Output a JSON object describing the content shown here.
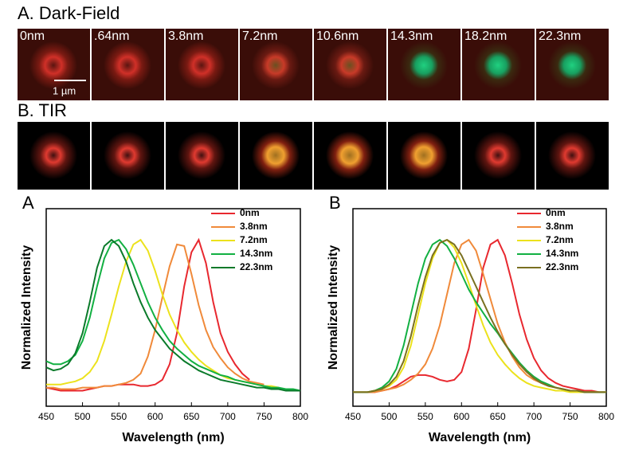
{
  "figure": {
    "dark_field": {
      "title": "A. Dark-Field",
      "labels": [
        "0nm",
        ".64nm",
        "3.8nm",
        "7.2nm",
        "10.6nm",
        "14.3nm",
        "18.2nm",
        "22.3nm"
      ],
      "scale_bar": "1 µm"
    },
    "tir": {
      "title": "B. TIR"
    }
  },
  "chart_data": [
    {
      "type": "line",
      "title": "A",
      "xlabel": "Wavelength (nm)",
      "ylabel": "Normalized Intensity",
      "xlim": [
        450,
        800
      ],
      "xticks": [
        450,
        500,
        550,
        600,
        650,
        700,
        750,
        800
      ],
      "ylim": [
        -0.07,
        1.2
      ],
      "legend": "upper right",
      "x": [
        450,
        460,
        470,
        480,
        490,
        500,
        510,
        520,
        530,
        540,
        550,
        560,
        570,
        580,
        590,
        600,
        610,
        620,
        630,
        640,
        650,
        660,
        670,
        680,
        690,
        700,
        710,
        720,
        730,
        740,
        750,
        760,
        770,
        780,
        790,
        800
      ],
      "series": [
        {
          "name": "0nm",
          "color": "#e8282f",
          "values": [
            0.05,
            0.04,
            0.03,
            0.03,
            0.03,
            0.03,
            0.04,
            0.05,
            0.06,
            0.06,
            0.07,
            0.07,
            0.07,
            0.06,
            0.06,
            0.07,
            0.1,
            0.2,
            0.4,
            0.7,
            0.92,
            1.0,
            0.85,
            0.6,
            0.4,
            0.28,
            0.2,
            0.14,
            0.1,
            null,
            null,
            null,
            null,
            null,
            null,
            null
          ]
        },
        {
          "name": "3.8nm",
          "color": "#f08a3a",
          "values": [
            0.05,
            0.05,
            0.04,
            0.04,
            0.04,
            0.05,
            0.05,
            0.05,
            0.06,
            0.06,
            0.07,
            0.08,
            0.1,
            0.14,
            0.25,
            0.42,
            0.63,
            0.83,
            0.97,
            0.96,
            0.78,
            0.58,
            0.42,
            0.31,
            0.24,
            0.18,
            0.14,
            0.11,
            0.09,
            0.08,
            0.07,
            null,
            null,
            null,
            null,
            null
          ]
        },
        {
          "name": "7.2nm",
          "color": "#ece21c",
          "values": [
            0.07,
            0.07,
            0.07,
            0.08,
            0.09,
            0.11,
            0.15,
            0.22,
            0.35,
            0.52,
            0.7,
            0.86,
            0.97,
            1.0,
            0.93,
            0.8,
            0.65,
            0.52,
            0.42,
            0.34,
            0.28,
            0.23,
            0.19,
            0.16,
            0.13,
            0.11,
            0.1,
            0.09,
            0.08,
            0.07,
            0.06,
            0.06,
            0.05,
            null,
            null,
            null
          ]
        },
        {
          "name": "14.3nm",
          "color": "#12b042",
          "values": [
            0.22,
            0.2,
            0.2,
            0.22,
            0.26,
            0.35,
            0.5,
            0.7,
            0.88,
            0.98,
            1.0,
            0.94,
            0.84,
            0.72,
            0.6,
            0.5,
            0.42,
            0.35,
            0.3,
            0.26,
            0.22,
            0.19,
            0.17,
            0.15,
            0.13,
            0.12,
            0.1,
            0.09,
            0.08,
            0.07,
            0.06,
            0.05,
            0.05,
            0.04,
            0.04,
            0.03
          ]
        },
        {
          "name": "22.3nm",
          "color": "#0a7a2a",
          "values": [
            0.18,
            0.16,
            0.17,
            0.2,
            0.27,
            0.4,
            0.6,
            0.82,
            0.96,
            1.0,
            0.96,
            0.86,
            0.72,
            0.6,
            0.5,
            0.42,
            0.36,
            0.3,
            0.26,
            0.22,
            0.19,
            0.16,
            0.14,
            0.12,
            0.1,
            0.09,
            0.08,
            0.07,
            0.06,
            0.05,
            0.05,
            0.04,
            0.04,
            0.03,
            0.03,
            0.03
          ]
        }
      ]
    },
    {
      "type": "line",
      "title": "B",
      "xlabel": "Wavelength (nm)",
      "ylabel": "Normalized Intensity",
      "xlim": [
        450,
        800
      ],
      "xticks": [
        450,
        500,
        550,
        600,
        650,
        700,
        750,
        800
      ],
      "ylim": [
        -0.07,
        1.2
      ],
      "legend": "upper right",
      "x": [
        450,
        460,
        470,
        480,
        490,
        500,
        510,
        520,
        530,
        540,
        550,
        560,
        570,
        580,
        590,
        600,
        610,
        620,
        630,
        640,
        650,
        660,
        670,
        680,
        690,
        700,
        710,
        720,
        730,
        740,
        750,
        760,
        770,
        780,
        790,
        800
      ],
      "series": [
        {
          "name": "0nm",
          "color": "#e8282f",
          "values": [
            0.02,
            0.02,
            0.02,
            0.02,
            0.03,
            0.04,
            0.06,
            0.09,
            0.12,
            0.13,
            0.13,
            0.12,
            0.1,
            0.09,
            0.1,
            0.15,
            0.3,
            0.55,
            0.82,
            0.97,
            1.0,
            0.9,
            0.72,
            0.52,
            0.36,
            0.24,
            0.16,
            0.11,
            0.08,
            0.06,
            0.05,
            0.04,
            0.03,
            0.03,
            0.02,
            0.02
          ]
        },
        {
          "name": "3.8nm",
          "color": "#f08a3a",
          "values": [
            0.02,
            0.02,
            0.02,
            0.02,
            0.03,
            0.04,
            0.05,
            0.07,
            0.1,
            0.14,
            0.2,
            0.3,
            0.45,
            0.65,
            0.85,
            0.97,
            1.0,
            0.93,
            0.78,
            0.62,
            0.46,
            0.34,
            0.25,
            0.18,
            0.13,
            0.1,
            0.08,
            0.06,
            0.05,
            0.04,
            0.03,
            0.03,
            0.02,
            0.02,
            0.02,
            0.02
          ]
        },
        {
          "name": "7.2nm",
          "color": "#ece21c",
          "values": [
            0.02,
            0.02,
            0.02,
            0.03,
            0.04,
            0.06,
            0.1,
            0.18,
            0.32,
            0.52,
            0.72,
            0.88,
            0.98,
            1.0,
            0.95,
            0.85,
            0.72,
            0.58,
            0.45,
            0.34,
            0.26,
            0.2,
            0.15,
            0.11,
            0.08,
            0.06,
            0.05,
            0.04,
            0.03,
            0.03,
            0.02,
            0.02,
            0.02,
            0.02,
            0.02,
            0.02
          ]
        },
        {
          "name": "14.3nm",
          "color": "#12b042",
          "values": [
            0.02,
            0.02,
            0.02,
            0.03,
            0.05,
            0.09,
            0.17,
            0.32,
            0.52,
            0.72,
            0.88,
            0.97,
            1.0,
            0.96,
            0.88,
            0.78,
            0.68,
            0.6,
            0.53,
            0.46,
            0.4,
            0.33,
            0.27,
            0.21,
            0.16,
            0.12,
            0.09,
            0.07,
            0.05,
            0.04,
            0.03,
            0.03,
            0.02,
            0.02,
            0.02,
            0.02
          ]
        },
        {
          "name": "22.3nm",
          "color": "#7a7020",
          "values": [
            0.02,
            0.02,
            0.02,
            0.03,
            0.04,
            0.07,
            0.12,
            0.22,
            0.38,
            0.58,
            0.76,
            0.9,
            0.98,
            1.0,
            0.97,
            0.9,
            0.8,
            0.7,
            0.6,
            0.5,
            0.41,
            0.33,
            0.26,
            0.2,
            0.15,
            0.11,
            0.08,
            0.06,
            0.05,
            0.04,
            0.03,
            0.03,
            0.02,
            0.02,
            0.02,
            0.02
          ]
        }
      ]
    }
  ]
}
